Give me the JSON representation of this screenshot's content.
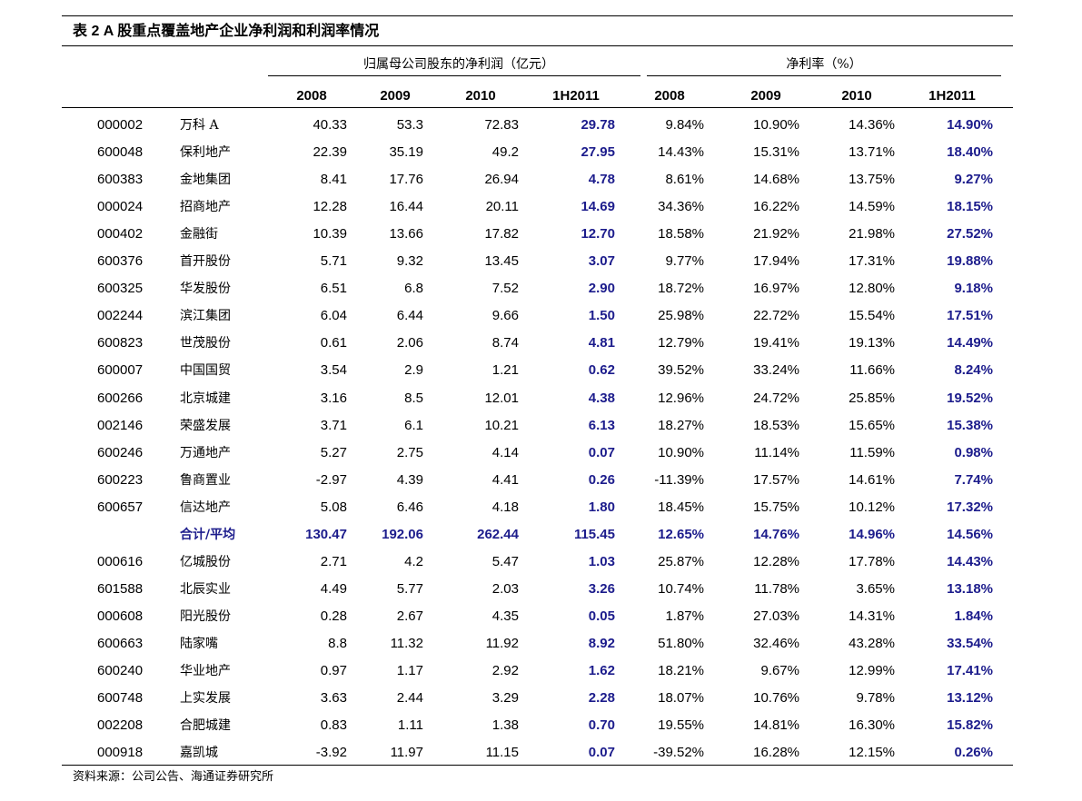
{
  "title": "表 2 A 股重点覆盖地产企业净利润和利润率情况",
  "table": {
    "group_headers": [
      "归属母公司股东的净利润（亿元）",
      "净利率（%）"
    ],
    "columns": [
      "2008",
      "2009",
      "2010",
      "1H2011",
      "2008",
      "2009",
      "2010",
      "1H2011"
    ],
    "rows": [
      {
        "code": "000002",
        "name": "万科 A",
        "values": [
          "40.33",
          "53.3",
          "72.83",
          "29.78",
          "9.84%",
          "10.90%",
          "14.36%",
          "14.90%"
        ]
      },
      {
        "code": "600048",
        "name": "保利地产",
        "values": [
          "22.39",
          "35.19",
          "49.2",
          "27.95",
          "14.43%",
          "15.31%",
          "13.71%",
          "18.40%"
        ]
      },
      {
        "code": "600383",
        "name": "金地集团",
        "values": [
          "8.41",
          "17.76",
          "26.94",
          "4.78",
          "8.61%",
          "14.68%",
          "13.75%",
          "9.27%"
        ]
      },
      {
        "code": "000024",
        "name": "招商地产",
        "values": [
          "12.28",
          "16.44",
          "20.11",
          "14.69",
          "34.36%",
          "16.22%",
          "14.59%",
          "18.15%"
        ]
      },
      {
        "code": "000402",
        "name": "金融街",
        "values": [
          "10.39",
          "13.66",
          "17.82",
          "12.70",
          "18.58%",
          "21.92%",
          "21.98%",
          "27.52%"
        ]
      },
      {
        "code": "600376",
        "name": "首开股份",
        "values": [
          "5.71",
          "9.32",
          "13.45",
          "3.07",
          "9.77%",
          "17.94%",
          "17.31%",
          "19.88%"
        ]
      },
      {
        "code": "600325",
        "name": "华发股份",
        "values": [
          "6.51",
          "6.8",
          "7.52",
          "2.90",
          "18.72%",
          "16.97%",
          "12.80%",
          "9.18%"
        ]
      },
      {
        "code": "002244",
        "name": "滨江集团",
        "values": [
          "6.04",
          "6.44",
          "9.66",
          "1.50",
          "25.98%",
          "22.72%",
          "15.54%",
          "17.51%"
        ]
      },
      {
        "code": "600823",
        "name": "世茂股份",
        "values": [
          "0.61",
          "2.06",
          "8.74",
          "4.81",
          "12.79%",
          "19.41%",
          "19.13%",
          "14.49%"
        ]
      },
      {
        "code": "600007",
        "name": "中国国贸",
        "values": [
          "3.54",
          "2.9",
          "1.21",
          "0.62",
          "39.52%",
          "33.24%",
          "11.66%",
          "8.24%"
        ]
      },
      {
        "code": "600266",
        "name": "北京城建",
        "values": [
          "3.16",
          "8.5",
          "12.01",
          "4.38",
          "12.96%",
          "24.72%",
          "25.85%",
          "19.52%"
        ]
      },
      {
        "code": "002146",
        "name": "荣盛发展",
        "values": [
          "3.71",
          "6.1",
          "10.21",
          "6.13",
          "18.27%",
          "18.53%",
          "15.65%",
          "15.38%"
        ]
      },
      {
        "code": "600246",
        "name": "万通地产",
        "values": [
          "5.27",
          "2.75",
          "4.14",
          "0.07",
          "10.90%",
          "11.14%",
          "11.59%",
          "0.98%"
        ]
      },
      {
        "code": "600223",
        "name": "鲁商置业",
        "values": [
          "-2.97",
          "4.39",
          "4.41",
          "0.26",
          "-11.39%",
          "17.57%",
          "14.61%",
          "7.74%"
        ]
      },
      {
        "code": "600657",
        "name": "信达地产",
        "values": [
          "5.08",
          "6.46",
          "4.18",
          "1.80",
          "18.45%",
          "15.75%",
          "10.12%",
          "17.32%"
        ]
      },
      {
        "name": "合计/平均",
        "values": [
          "130.47",
          "192.06",
          "262.44",
          "115.45",
          "12.65%",
          "14.76%",
          "14.96%",
          "14.56%"
        ]
      },
      {
        "code": "000616",
        "name": "亿城股份",
        "values": [
          "2.71",
          "4.2",
          "5.47",
          "1.03",
          "25.87%",
          "12.28%",
          "17.78%",
          "14.43%"
        ]
      },
      {
        "code": "601588",
        "name": "北辰实业",
        "values": [
          "4.49",
          "5.77",
          "2.03",
          "3.26",
          "10.74%",
          "11.78%",
          "3.65%",
          "13.18%"
        ]
      },
      {
        "code": "000608",
        "name": "阳光股份",
        "values": [
          "0.28",
          "2.67",
          "4.35",
          "0.05",
          "1.87%",
          "27.03%",
          "14.31%",
          "1.84%"
        ]
      },
      {
        "code": "600663",
        "name": "陆家嘴",
        "values": [
          "8.8",
          "11.32",
          "11.92",
          "8.92",
          "51.80%",
          "32.46%",
          "43.28%",
          "33.54%"
        ]
      },
      {
        "code": "600240",
        "name": "华业地产",
        "values": [
          "0.97",
          "1.17",
          "2.92",
          "1.62",
          "18.21%",
          "9.67%",
          "12.99%",
          "17.41%"
        ]
      },
      {
        "code": "600748",
        "name": "上实发展",
        "values": [
          "3.63",
          "2.44",
          "3.29",
          "2.28",
          "18.07%",
          "10.76%",
          "9.78%",
          "13.12%"
        ]
      },
      {
        "code": "002208",
        "name": "合肥城建",
        "values": [
          "0.83",
          "1.11",
          "1.38",
          "0.70",
          "19.55%",
          "14.81%",
          "16.30%",
          "15.82%"
        ]
      },
      {
        "code": "000918",
        "name": "嘉凯城",
        "values": [
          "-3.92",
          "11.97",
          "11.15",
          "0.07",
          "-39.52%",
          "16.28%",
          "12.15%",
          "0.26%"
        ]
      }
    ]
  },
  "source": "资料来源：公司公告、海通证券研究所"
}
